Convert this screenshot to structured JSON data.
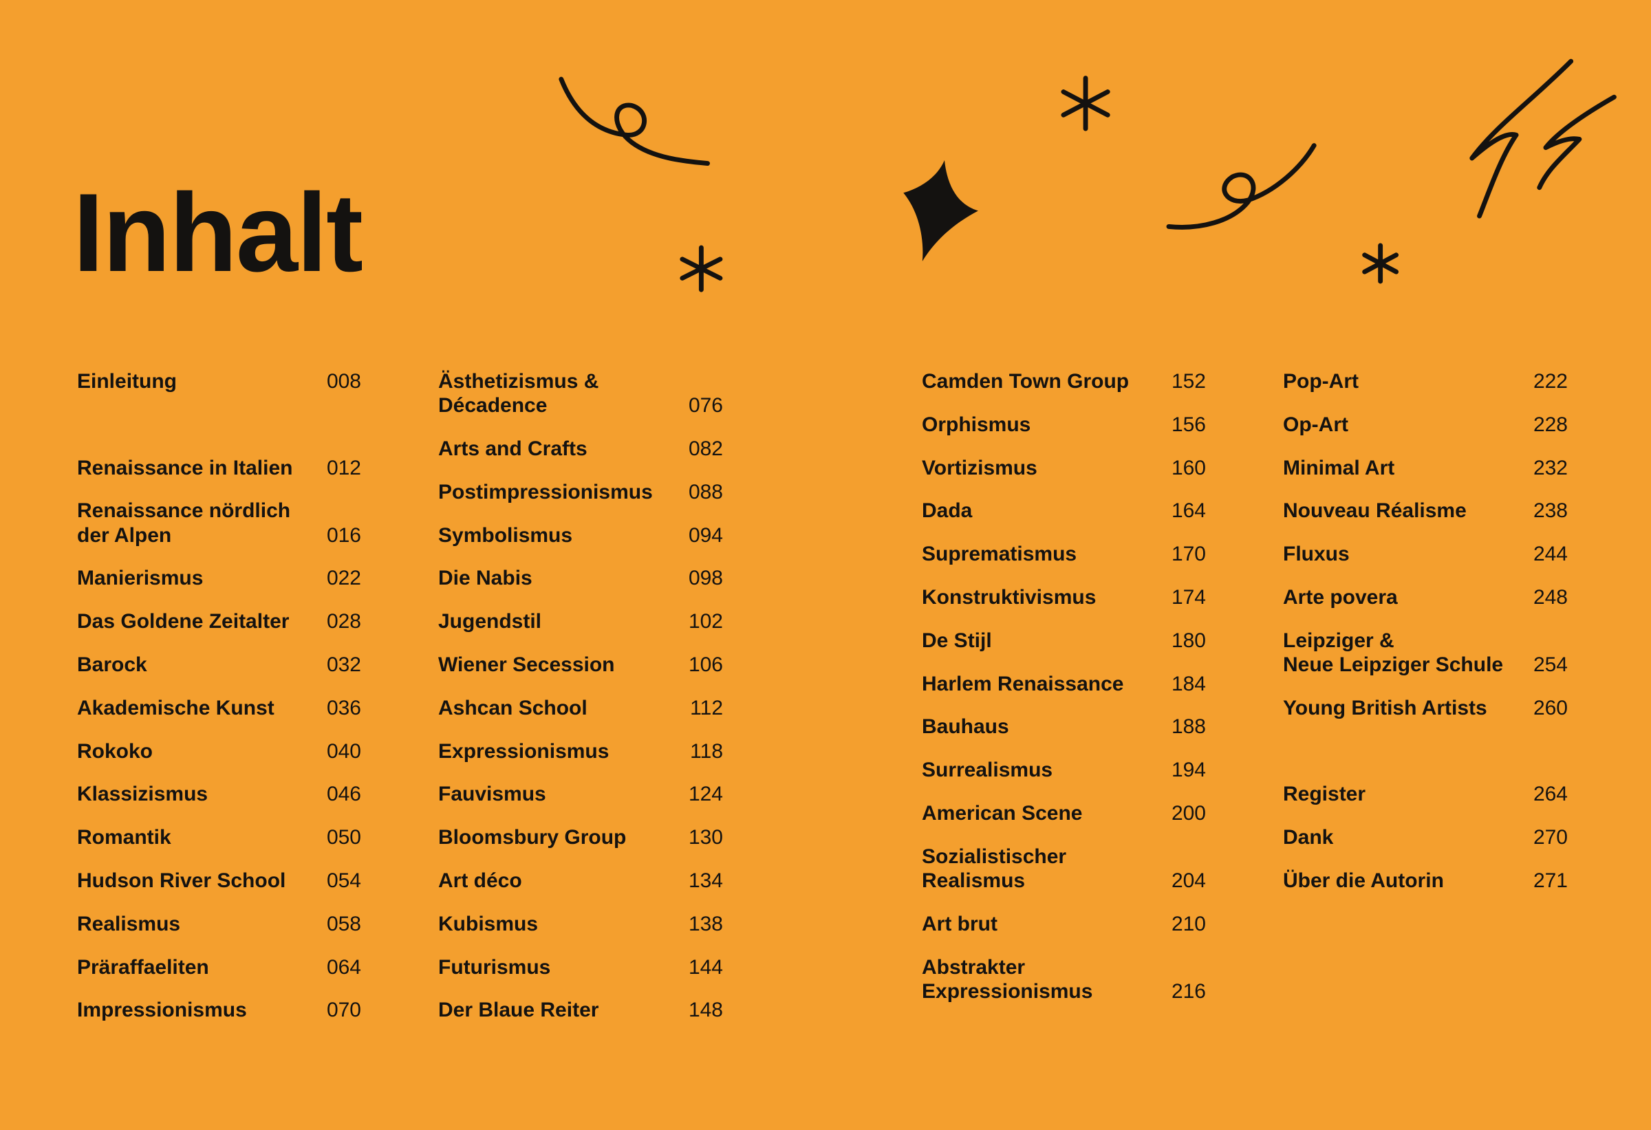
{
  "title": "Inhalt",
  "columns": [
    [
      {
        "lines": [
          "Einleitung"
        ],
        "page": "008"
      },
      {
        "spacer": true
      },
      {
        "lines": [
          "Renaissance in Italien"
        ],
        "page": "012"
      },
      {
        "lines": [
          "Renaissance nördlich",
          "der Alpen"
        ],
        "page": "016"
      },
      {
        "lines": [
          "Manierismus"
        ],
        "page": "022"
      },
      {
        "lines": [
          "Das Goldene Zeitalter"
        ],
        "page": "028"
      },
      {
        "lines": [
          "Barock"
        ],
        "page": "032"
      },
      {
        "lines": [
          "Akademische Kunst"
        ],
        "page": "036"
      },
      {
        "lines": [
          "Rokoko"
        ],
        "page": "040"
      },
      {
        "lines": [
          "Klassizismus"
        ],
        "page": "046"
      },
      {
        "lines": [
          "Romantik"
        ],
        "page": "050"
      },
      {
        "lines": [
          "Hudson River School"
        ],
        "page": "054"
      },
      {
        "lines": [
          "Realismus"
        ],
        "page": "058"
      },
      {
        "lines": [
          "Präraffaeliten"
        ],
        "page": "064"
      },
      {
        "lines": [
          "Impressionismus"
        ],
        "page": "070"
      }
    ],
    [
      {
        "lines": [
          "Ästhetizismus &",
          "Décadence"
        ],
        "page": "076"
      },
      {
        "lines": [
          "Arts and Crafts"
        ],
        "page": "082"
      },
      {
        "lines": [
          "Postimpressionismus"
        ],
        "page": "088"
      },
      {
        "lines": [
          "Symbolismus"
        ],
        "page": "094"
      },
      {
        "lines": [
          "Die Nabis"
        ],
        "page": "098"
      },
      {
        "lines": [
          "Jugendstil"
        ],
        "page": "102"
      },
      {
        "lines": [
          "Wiener Secession"
        ],
        "page": "106"
      },
      {
        "lines": [
          "Ashcan School"
        ],
        "page": "112"
      },
      {
        "lines": [
          "Expressionismus"
        ],
        "page": "118"
      },
      {
        "lines": [
          "Fauvismus"
        ],
        "page": "124"
      },
      {
        "lines": [
          "Bloomsbury Group"
        ],
        "page": "130"
      },
      {
        "lines": [
          "Art déco"
        ],
        "page": "134"
      },
      {
        "lines": [
          "Kubismus"
        ],
        "page": "138"
      },
      {
        "lines": [
          "Futurismus"
        ],
        "page": "144"
      },
      {
        "lines": [
          "Der Blaue Reiter"
        ],
        "page": "148"
      }
    ],
    [
      {
        "lines": [
          "Camden Town Group"
        ],
        "page": "152"
      },
      {
        "lines": [
          "Orphismus"
        ],
        "page": "156"
      },
      {
        "lines": [
          "Vortizismus"
        ],
        "page": "160"
      },
      {
        "lines": [
          "Dada"
        ],
        "page": "164"
      },
      {
        "lines": [
          "Suprematismus"
        ],
        "page": "170"
      },
      {
        "lines": [
          "Konstruktivismus"
        ],
        "page": "174"
      },
      {
        "lines": [
          "De Stijl"
        ],
        "page": "180"
      },
      {
        "lines": [
          "Harlem Renaissance"
        ],
        "page": "184"
      },
      {
        "lines": [
          "Bauhaus"
        ],
        "page": "188"
      },
      {
        "lines": [
          "Surrealismus"
        ],
        "page": "194"
      },
      {
        "lines": [
          "American Scene"
        ],
        "page": "200"
      },
      {
        "lines": [
          "Sozialistischer",
          "Realismus"
        ],
        "page": "204"
      },
      {
        "lines": [
          "Art brut"
        ],
        "page": "210"
      },
      {
        "lines": [
          "Abstrakter",
          "Expressionismus"
        ],
        "page": "216"
      }
    ],
    [
      {
        "lines": [
          "Pop-Art"
        ],
        "page": "222"
      },
      {
        "lines": [
          "Op-Art"
        ],
        "page": "228"
      },
      {
        "lines": [
          "Minimal Art"
        ],
        "page": "232"
      },
      {
        "lines": [
          "Nouveau Réalisme"
        ],
        "page": "238"
      },
      {
        "lines": [
          "Fluxus"
        ],
        "page": "244"
      },
      {
        "lines": [
          "Arte povera"
        ],
        "page": "248"
      },
      {
        "lines": [
          "Leipziger &",
          "Neue Leipziger Schule"
        ],
        "page": "254"
      },
      {
        "lines": [
          "Young British Artists"
        ],
        "page": "260"
      },
      {
        "spacer": true
      },
      {
        "lines": [
          "Register"
        ],
        "page": "264"
      },
      {
        "lines": [
          "Dank"
        ],
        "page": "270"
      },
      {
        "lines": [
          "Über die Autorin"
        ],
        "page": "271"
      }
    ]
  ],
  "colors": {
    "background": "#F49F2E",
    "ink": "#141210"
  },
  "decorations": [
    "squiggle-loop",
    "asterisk",
    "sparkle-star",
    "asterisk",
    "squiggle-loop",
    "asterisk",
    "lightning-scribble"
  ]
}
